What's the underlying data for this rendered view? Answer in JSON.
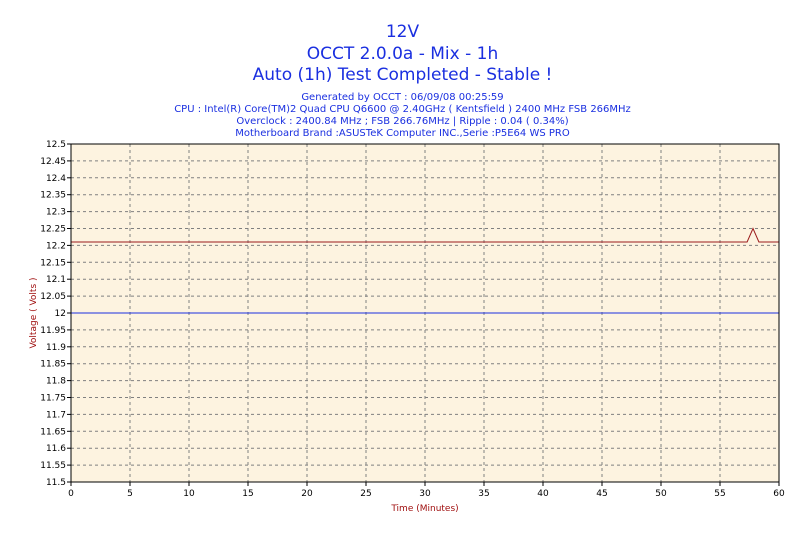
{
  "colors": {
    "title": "#1a2fe0",
    "plot_background": "#fdf3e0",
    "grid": "#808080",
    "axis_label": "#a01010",
    "series_measured": "#9b1b1b",
    "series_nominal": "#1a2fe0"
  },
  "titles": {
    "line1": "12V",
    "line2": "OCCT 2.0.0a - Mix - 1h",
    "line3": "Auto (1h) Test Completed - Stable !"
  },
  "info": {
    "generated": "Generated by OCCT : 06/09/08 00:25:59",
    "cpu": "CPU : Intel(R) Core(TM)2 Quad CPU Q6600 @ 2.40GHz ( Kentsfield ) 2400 MHz FSB 266MHz",
    "overclock": "Overclock : 2400.84 MHz ; FSB 266.76MHz | Ripple : 0.04 ( 0.34%)",
    "motherboard": "Motherboard Brand :ASUSTeK Computer INC.,Serie :P5E64 WS PRO"
  },
  "chart_data": {
    "type": "line",
    "xlabel": "Time (Minutes)",
    "ylabel": "Voltage ( Volts )",
    "xlim": [
      0,
      60
    ],
    "ylim": [
      11.5,
      12.5
    ],
    "grid": true,
    "x_ticks": [
      "0",
      "5",
      "10",
      "15",
      "20",
      "25",
      "30",
      "35",
      "40",
      "45",
      "50",
      "55",
      "60"
    ],
    "y_ticks": [
      "12.5",
      "12.45",
      "12.4",
      "12.35",
      "12.3",
      "12.25",
      "12.2",
      "12.15",
      "12.1",
      "12.05",
      "12",
      "11.95",
      "11.9",
      "11.85",
      "11.8",
      "11.75",
      "11.7",
      "11.65",
      "11.6",
      "11.55",
      "11.5"
    ],
    "series": [
      {
        "color": "#9b1b1b",
        "x": [
          0,
          57.3,
          57.8,
          58.3,
          60
        ],
        "y": [
          12.21,
          12.21,
          12.25,
          12.21,
          12.21
        ]
      },
      {
        "color": "#1a2fe0",
        "x": [
          0,
          60
        ],
        "y": [
          12.0,
          12.0
        ]
      }
    ]
  }
}
